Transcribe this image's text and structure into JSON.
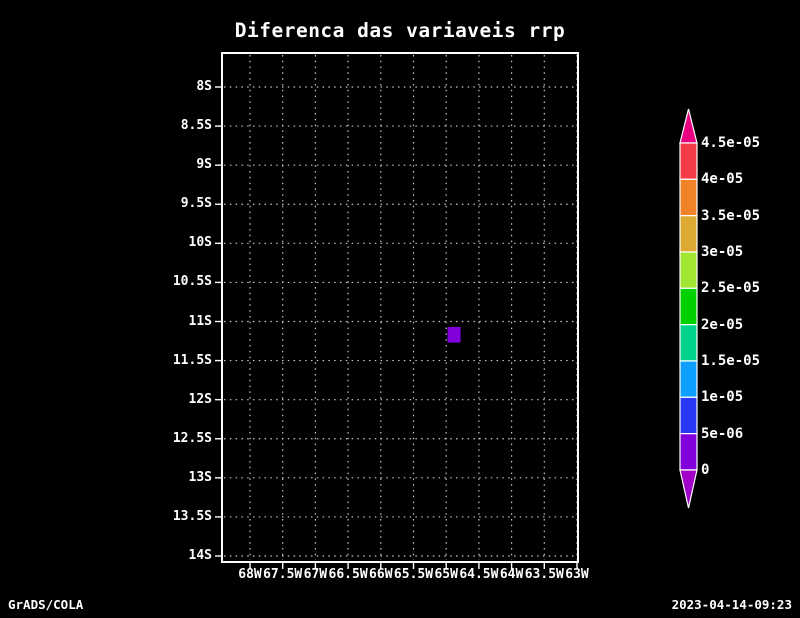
{
  "title": "Diferenca das variaveis rrp",
  "footer": {
    "left": "GrADS/COLA",
    "right": "2023-04-14-09:23"
  },
  "chart_data": {
    "type": "heatmap",
    "title": "Diferenca das variaveis rrp",
    "grid": "dotted",
    "x_axis": {
      "ticks": [
        "68W",
        "67.5W",
        "67W",
        "66.5W",
        "66W",
        "65.5W",
        "65W",
        "64.5W",
        "64W",
        "63.5W",
        "63W"
      ],
      "range_deg": [
        -68.43,
        -63.0
      ]
    },
    "y_axis": {
      "ticks": [
        "8S",
        "8.5S",
        "9S",
        "9.5S",
        "10S",
        "10.5S",
        "11S",
        "11.5S",
        "12S",
        "12.5S",
        "13S",
        "13.5S",
        "14S"
      ],
      "range_deg": [
        -7.57,
        -14.08
      ]
    },
    "cells": [
      {
        "lon_deg": -64.88,
        "lat_deg": -11.17,
        "size_deg": 0.2,
        "value_range": "0 to 5e-06",
        "color": "#8200dc"
      }
    ],
    "colorbar": {
      "orientation": "vertical",
      "value_levels": [
        0,
        5e-06,
        1e-05,
        1.5e-05,
        2e-05,
        2.5e-05,
        3e-05,
        3.5e-05,
        4e-05,
        4.5e-05
      ],
      "tick_labels": [
        "4.5e-05",
        "4e-05",
        "3.5e-05",
        "3e-05",
        "2.5e-05",
        "2e-05",
        "1.5e-05",
        "1e-05",
        "5e-06",
        "0"
      ],
      "segments": [
        {
          "range": "> 4.5e-05",
          "color": "#e8007e",
          "shape": "triangle-up"
        },
        {
          "range": "4e-05 to 4.5e-05",
          "color": "#f43c46",
          "shape": "rect"
        },
        {
          "range": "3.5e-05 to 4e-05",
          "color": "#f08228",
          "shape": "rect"
        },
        {
          "range": "3e-05 to 3.5e-05",
          "color": "#dcaa32",
          "shape": "rect"
        },
        {
          "range": "2.5e-05 to 3e-05",
          "color": "#a0e632",
          "shape": "rect"
        },
        {
          "range": "2e-05 to 2.5e-05",
          "color": "#00d200",
          "shape": "rect"
        },
        {
          "range": "1.5e-05 to 2e-05",
          "color": "#00d28c",
          "shape": "rect"
        },
        {
          "range": "1e-05 to 1.5e-05",
          "color": "#0fa0ff",
          "shape": "rect"
        },
        {
          "range": "5e-06 to 1e-05",
          "color": "#2838f5",
          "shape": "rect"
        },
        {
          "range": "0 to 5e-06",
          "color": "#8200dc",
          "shape": "rect"
        },
        {
          "range": "< 0",
          "color": "#a000c8",
          "shape": "triangle-down"
        }
      ]
    },
    "style": {
      "background": "#000000",
      "frame_color": "#ffffff",
      "grid_color": "#c8c8c8",
      "text_color": "#ffffff"
    }
  }
}
